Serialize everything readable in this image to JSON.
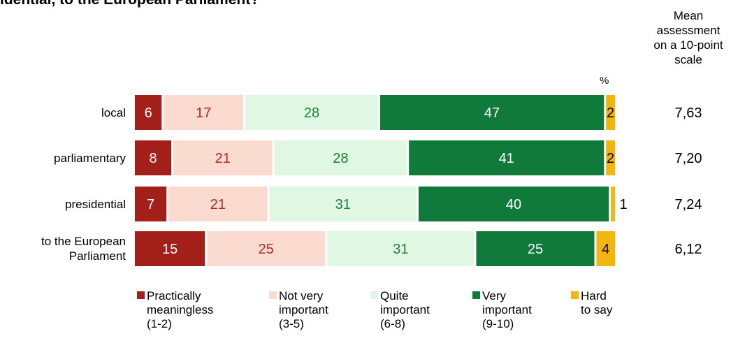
{
  "title": "idential, to the European Parliament?",
  "mean_header": "Mean assessment on a 10-point scale",
  "percent_label": "%",
  "chart_data": {
    "type": "bar",
    "orientation": "horizontal",
    "stacked": true,
    "categories": [
      "local",
      "parliamentary",
      "presidential",
      "to the European Parliament"
    ],
    "series": [
      {
        "name": "Practically meaningless (1-2)",
        "color": "#a31f1a",
        "label_color": "#ffffff",
        "values": [
          6,
          8,
          7,
          15
        ]
      },
      {
        "name": "Not very important (3-5)",
        "color": "#fbdbd0",
        "label_color": "#b22a22",
        "values": [
          17,
          21,
          21,
          25
        ]
      },
      {
        "name": "Quite important (6-8)",
        "color": "#e0f7e3",
        "label_color": "#1e7f3a",
        "values": [
          28,
          28,
          31,
          31
        ]
      },
      {
        "name": "Very important (9-10)",
        "color": "#0f7a3a",
        "label_color": "#ffffff",
        "values": [
          47,
          41,
          40,
          25
        ]
      },
      {
        "name": "Hard to say",
        "color": "#f5b50f",
        "label_color": "#000000",
        "values": [
          2,
          2,
          1,
          4
        ]
      }
    ],
    "means": [
      "7,63",
      "7,20",
      "7,24",
      "6,12"
    ],
    "unit": "%",
    "legend_position": "bottom"
  },
  "legend": [
    {
      "lines": [
        "Practically",
        "meaningless",
        "(1-2)"
      ],
      "color": "#a31f1a"
    },
    {
      "lines": [
        "Not very",
        "important",
        "(3-5)"
      ],
      "color": "#fbdbd0"
    },
    {
      "lines": [
        "Quite",
        "important",
        "(6-8)"
      ],
      "color": "#e0f7e3"
    },
    {
      "lines": [
        "Very",
        "important",
        "(9-10)"
      ],
      "color": "#0f7a3a"
    },
    {
      "lines": [
        "Hard",
        "to say"
      ],
      "color": "#f5b50f"
    }
  ]
}
